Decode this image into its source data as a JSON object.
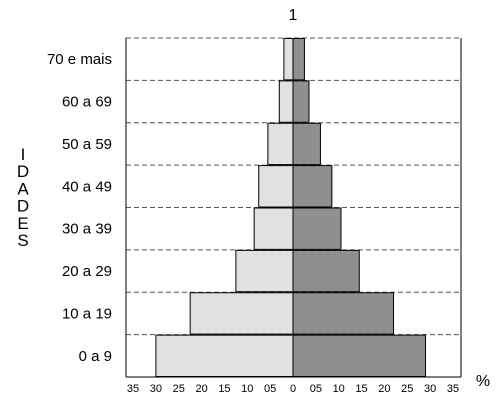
{
  "chart_data": {
    "type": "bar",
    "subtype": "population-pyramid",
    "title": "1",
    "ylabel": "IDADES",
    "x_unit": "%",
    "categories": [
      "0 a 9",
      "10 a 19",
      "20 a 29",
      "30 a 39",
      "40 a 49",
      "50 a 59",
      "60 a 69",
      "70 e mais"
    ],
    "series": [
      {
        "side": "left",
        "values": [
          30,
          22.5,
          12.5,
          8.5,
          7.5,
          5.5,
          3,
          2
        ]
      },
      {
        "side": "right",
        "values": [
          29,
          22,
          14.5,
          10.5,
          8.5,
          6,
          3.5,
          2.5
        ]
      }
    ],
    "xlim": [
      -35,
      35
    ],
    "tick_labels": [
      "35",
      "30",
      "25",
      "20",
      "15",
      "10",
      "05",
      "0",
      "05",
      "10",
      "15",
      "20",
      "25",
      "30",
      "35"
    ],
    "grid": "dashed horizontal lines between age groups",
    "colors": {
      "left": "#e0e0e0",
      "right": "#8f8f8f",
      "grid": "#555555"
    }
  }
}
